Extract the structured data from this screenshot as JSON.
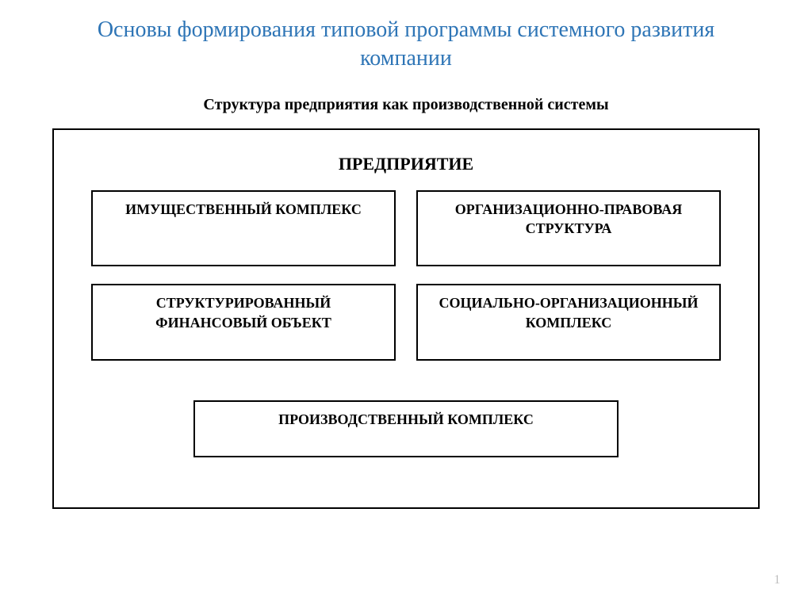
{
  "title": {
    "text": "Основы формирования типовой программы системного развития компании",
    "color": "#2e75b6",
    "fontsize": 28
  },
  "subtitle": {
    "text": "Структура предприятия как производственной системы",
    "fontsize": 20,
    "color": "#000000"
  },
  "diagram": {
    "heading": "ПРЕДПРИЯТИЕ",
    "border_color": "#000000",
    "background_color": "#ffffff",
    "box_fontsize": 18,
    "rows": [
      {
        "cells": [
          {
            "label": "ИМУЩЕСТВЕННЫЙ КОМПЛЕКС"
          },
          {
            "label": "ОРГАНИЗАЦИОННО-ПРАВОВАЯ СТРУКТУРА"
          }
        ]
      },
      {
        "cells": [
          {
            "label": "СТРУКТУРИРОВАННЫЙ ФИНАНСОВЫЙ ОБЪЕКТ"
          },
          {
            "label": "СОЦИАЛЬНО-ОРГАНИЗАЦИОННЫЙ КОМПЛЕКС"
          }
        ]
      },
      {
        "cells": [
          {
            "label": "ПРОИЗВОДСТВЕННЫЙ КОМПЛЕКС"
          }
        ]
      }
    ]
  },
  "page_number": "1",
  "colors": {
    "title": "#2e75b6",
    "text": "#000000",
    "border": "#000000",
    "background": "#ffffff",
    "page_number": "#bfbfbf"
  }
}
